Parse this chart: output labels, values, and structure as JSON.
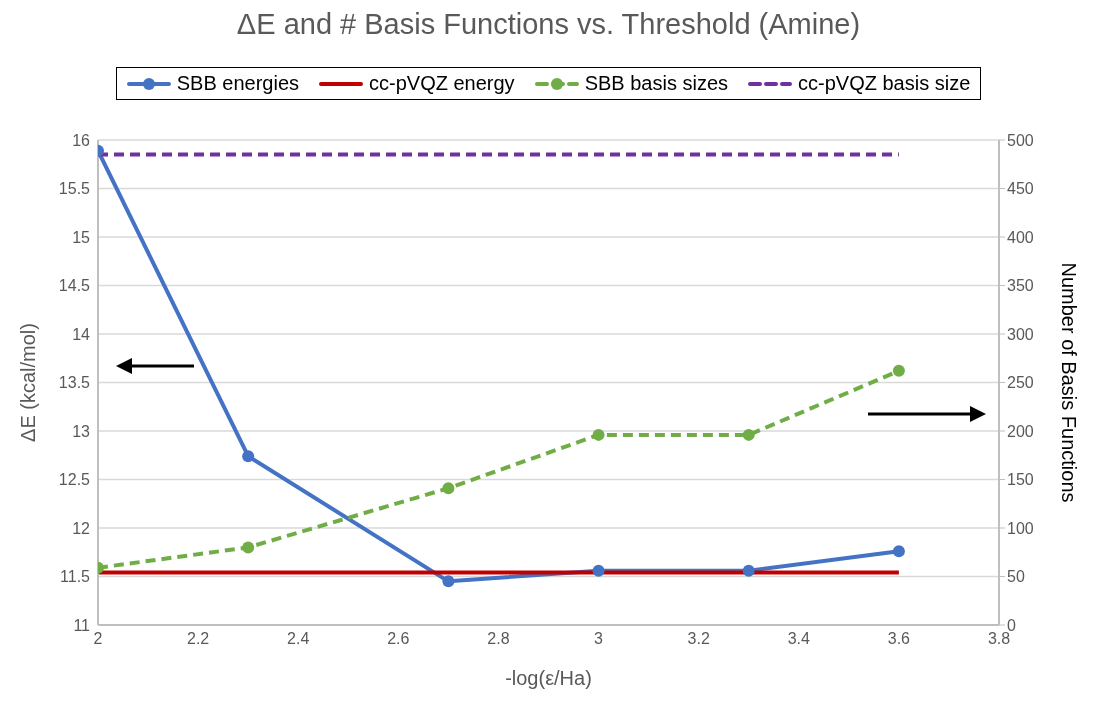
{
  "chart_data": {
    "type": "line",
    "title": "ΔE and # Basis Functions vs. Threshold (Amine)",
    "xlabel": "-log(ε/Ha)",
    "ylabel": "ΔE (kcal/mol)",
    "y2label": "Number of Basis Functions",
    "x": [
      2,
      2.3,
      2.7,
      3,
      3.3,
      3.6
    ],
    "series": [
      {
        "name": "SBB energies",
        "color": "#4472c4",
        "values": [
          15.89,
          12.74,
          11.45,
          11.56,
          11.56,
          11.76
        ],
        "marker": "circle",
        "line_style": "solid"
      },
      {
        "name": "cc-pVQZ energy",
        "color": "#c00000",
        "values": [
          11.54,
          11.54,
          11.54,
          11.54,
          11.54,
          11.54
        ],
        "marker": "none",
        "line_style": "solid"
      },
      {
        "name": "SBB basis sizes",
        "color": "#70ad47",
        "values": [
          59,
          80,
          141,
          196,
          196,
          262
        ],
        "axis": "y2",
        "marker": "circle",
        "line_style": "dashed"
      },
      {
        "name": "cc-pVQZ basis size",
        "color": "#7030a0",
        "values": [
          485,
          485,
          485,
          485,
          485,
          485
        ],
        "axis": "y2",
        "marker": "none",
        "line_style": "dashed"
      }
    ],
    "xlim": [
      2,
      3.8
    ],
    "xticks": [
      2,
      2.2,
      2.4,
      2.6,
      2.8,
      3,
      3.2,
      3.4,
      3.6,
      3.8
    ],
    "ylim": [
      11,
      16
    ],
    "yticks": [
      11,
      11.5,
      12,
      12.5,
      13,
      13.5,
      14,
      14.5,
      15,
      15.5,
      16
    ],
    "y2lim": [
      0,
      500
    ],
    "y2ticks": [
      0,
      50,
      100,
      150,
      200,
      250,
      300,
      350,
      400,
      450,
      500
    ],
    "grid": "y",
    "legend": "top"
  }
}
